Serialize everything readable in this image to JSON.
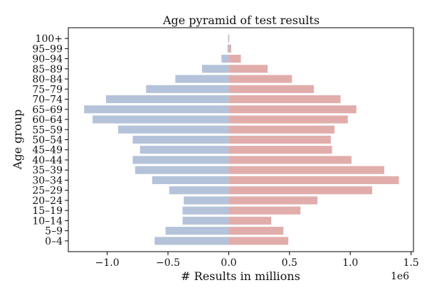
{
  "chart_data": {
    "type": "bar",
    "orientation": "horizontal",
    "layout": "population-pyramid",
    "title": "Age pyramid of test results",
    "xlabel": "# Results in millions",
    "ylabel": "Age group",
    "x_offset_label": "1e6",
    "xlim": [
      -1.32,
      1.52
    ],
    "xticks": [
      -1.0,
      -0.5,
      0.0,
      0.5,
      1.0,
      1.5
    ],
    "xtick_labels": [
      "−1.0",
      "−0.5",
      "0.0",
      "0.5",
      "1.0",
      "1.5"
    ],
    "categories": [
      "0–4",
      "5–9",
      "10–14",
      "15–19",
      "20–24",
      "25–29",
      "30–34",
      "35–39",
      "40–44",
      "45–49",
      "50–54",
      "55–59",
      "60–64",
      "65–69",
      "70–74",
      "75–79",
      "80–84",
      "85–89",
      "90–94",
      "95–99",
      "100+"
    ],
    "series": [
      {
        "color": "#b4c3d9",
        "values": [
          -0.61,
          -0.52,
          -0.38,
          -0.38,
          -0.37,
          -0.49,
          -0.63,
          -0.77,
          -0.79,
          -0.73,
          -0.79,
          -0.91,
          -1.12,
          -1.19,
          -1.01,
          -0.68,
          -0.44,
          -0.22,
          -0.06,
          -0.01,
          -0.005
        ]
      },
      {
        "color": "#e1adab",
        "values": [
          0.49,
          0.45,
          0.35,
          0.59,
          0.73,
          1.18,
          1.4,
          1.28,
          1.01,
          0.85,
          0.84,
          0.87,
          0.98,
          1.05,
          0.92,
          0.7,
          0.52,
          0.32,
          0.1,
          0.02,
          0.005
        ]
      }
    ],
    "grid": false,
    "legend": false
  }
}
